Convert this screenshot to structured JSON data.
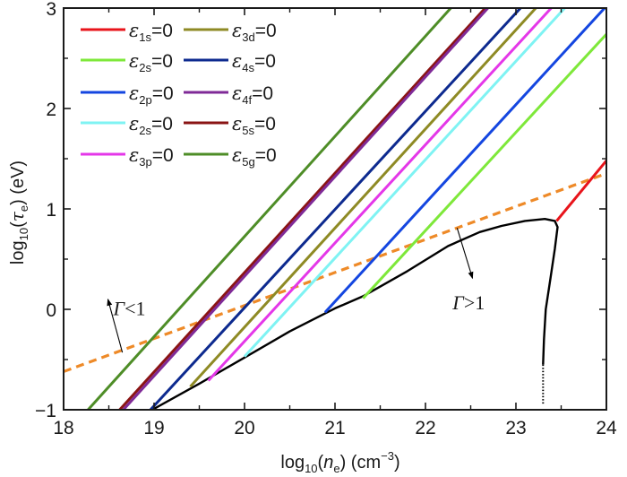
{
  "chart_data": {
    "type": "line",
    "xlabel": {
      "prefix": "log",
      "sub": "10",
      "open": "(",
      "var": "n",
      "varsub": "e",
      "close": ") (cm",
      "sup": "−3",
      "end": ")"
    },
    "ylabel": {
      "prefix": "log",
      "sub": "10",
      "open": "(",
      "var": "τ",
      "varsub": "e",
      "close": ") (eV)"
    },
    "xlim": [
      18,
      24
    ],
    "ylim": [
      -1,
      3
    ],
    "xticks": [
      18,
      19,
      20,
      21,
      22,
      23,
      24
    ],
    "xtick_labels": [
      "18",
      "19",
      "20",
      "21",
      "22",
      "23",
      "24"
    ],
    "yticks": [
      -1,
      0,
      1,
      2,
      3
    ],
    "ytick_labels": [
      "−1",
      "0",
      "1",
      "2",
      "3"
    ],
    "grid": false,
    "legend_position": "top-left",
    "series": [
      {
        "name": "ε1s=0",
        "label": "ε",
        "sub": "1s",
        "suffix": "=0",
        "color": "#e8141b",
        "style": "solid",
        "points": [
          [
            23.45,
            0.88
          ],
          [
            24.0,
            1.48
          ]
        ]
      },
      {
        "name": "ε2s=0 (green)",
        "label": "ε",
        "sub": "2s",
        "suffix": "=0",
        "color": "#7ee83a",
        "style": "solid",
        "points": [
          [
            21.31,
            0.11
          ],
          [
            24.0,
            2.74
          ]
        ]
      },
      {
        "name": "ε2p=0",
        "label": "ε",
        "sub": "2p",
        "suffix": "=0",
        "color": "#1446e0",
        "style": "solid",
        "points": [
          [
            20.89,
            -0.03
          ],
          [
            23.98,
            3.0
          ]
        ]
      },
      {
        "name": "ε2s=0 (cyan)",
        "label": "ε",
        "sub": "2s",
        "suffix": "=0",
        "color": "#7ff3f3",
        "style": "solid",
        "points": [
          [
            20.0,
            -0.47
          ],
          [
            23.54,
            3.0
          ]
        ]
      },
      {
        "name": "ε3p=0",
        "label": "ε",
        "sub": "3p",
        "suffix": "=0",
        "color": "#e437e8",
        "style": "solid",
        "points": [
          [
            19.6,
            -0.71
          ],
          [
            23.39,
            3.0
          ]
        ]
      },
      {
        "name": "ε3d=0",
        "label": "ε",
        "sub": "3d",
        "suffix": "=0",
        "color": "#8e8a24",
        "style": "solid",
        "points": [
          [
            19.4,
            -0.77
          ],
          [
            23.22,
            3.0
          ]
        ]
      },
      {
        "name": "ε4s=0",
        "label": "ε",
        "sub": "4s",
        "suffix": "=0",
        "color": "#0d2a8f",
        "style": "solid",
        "points": [
          [
            18.96,
            -1.0
          ],
          [
            23.05,
            3.0
          ]
        ]
      },
      {
        "name": "ε4f=0",
        "label": "ε",
        "sub": "4f",
        "suffix": "=0",
        "color": "#7f2a97",
        "style": "solid",
        "points": [
          [
            18.66,
            -1.0
          ],
          [
            22.69,
            3.0
          ]
        ]
      },
      {
        "name": "ε5s=0",
        "label": "ε",
        "sub": "5s",
        "suffix": "=0",
        "color": "#8a1414",
        "style": "solid",
        "points": [
          [
            18.62,
            -1.0
          ],
          [
            22.66,
            3.0
          ]
        ]
      },
      {
        "name": "ε5g=0",
        "label": "ε",
        "sub": "5g",
        "suffix": "=0",
        "color": "#4e8d27",
        "style": "solid",
        "points": [
          [
            18.27,
            -1.0
          ],
          [
            22.28,
            3.0
          ]
        ]
      }
    ],
    "boundary_curve": {
      "name": "Γ=1 boundary",
      "color": "#000000",
      "points": [
        [
          18.98,
          -1.0
        ],
        [
          19.5,
          -0.74
        ],
        [
          20.0,
          -0.48
        ],
        [
          20.5,
          -0.22
        ],
        [
          21.0,
          0.01
        ],
        [
          21.31,
          0.13
        ],
        [
          21.8,
          0.38
        ],
        [
          22.25,
          0.63
        ],
        [
          22.6,
          0.77
        ],
        [
          22.84,
          0.83
        ],
        [
          23.1,
          0.88
        ],
        [
          23.32,
          0.9
        ],
        [
          23.43,
          0.88
        ],
        [
          23.46,
          0.82
        ],
        [
          23.43,
          0.6
        ],
        [
          23.38,
          0.3
        ],
        [
          23.33,
          0.0
        ],
        [
          23.31,
          -0.3
        ],
        [
          23.3,
          -0.55
        ]
      ],
      "dotted_tail": [
        [
          23.3,
          -0.55
        ],
        [
          23.3,
          -0.95
        ]
      ]
    },
    "gamma_line": {
      "name": "Γ=1 line",
      "color": "#ee8a28",
      "style": "dashed",
      "points": [
        [
          18.0,
          -0.62
        ],
        [
          23.96,
          1.34
        ]
      ]
    },
    "annotations": [
      {
        "text_symbol": "Γ",
        "text_rest": "<1",
        "at": [
          18.55,
          -0.06
        ],
        "arrow_from": [
          18.65,
          -0.43
        ],
        "arrow_to": [
          18.49,
          0.1
        ]
      },
      {
        "text_symbol": "Γ",
        "text_rest": ">1",
        "at": [
          22.3,
          0.0
        ],
        "arrow_from": [
          22.35,
          0.81
        ],
        "arrow_to": [
          22.52,
          0.31
        ]
      }
    ]
  }
}
